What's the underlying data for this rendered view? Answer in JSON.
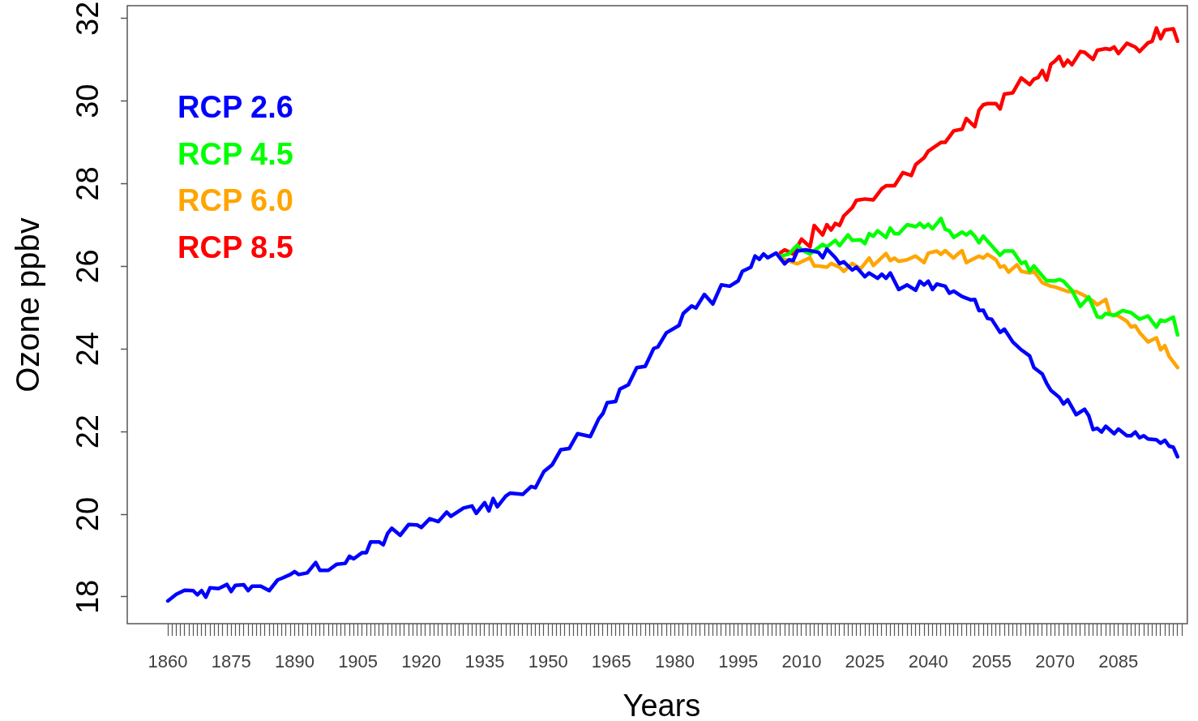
{
  "chart_data": {
    "type": "line",
    "xlabel": "Years",
    "ylabel": "Ozone ppbv",
    "legend": "top left",
    "xlim": [
      1850.4,
      2101.5
    ],
    "ylim": [
      17.35,
      32.31
    ],
    "yticks": [
      18,
      20,
      22,
      24,
      26,
      28,
      30,
      32
    ],
    "xticks": [
      1860,
      {
        "value": 1861,
        "label": null
      },
      {
        "value": 1862,
        "label": null
      },
      {
        "value": 1863,
        "label": null
      },
      {
        "value": 1864,
        "label": null
      },
      {
        "value": 1865,
        "label": null
      },
      {
        "value": 1866,
        "label": null
      },
      {
        "value": 1867,
        "label": null
      },
      {
        "value": 1868,
        "label": null
      },
      {
        "value": 1869,
        "label": null
      },
      {
        "value": 1870,
        "label": null
      },
      {
        "value": 1871,
        "label": null
      },
      {
        "value": 1872,
        "label": null
      },
      {
        "value": 1873,
        "label": null
      },
      {
        "value": 1874,
        "label": null
      },
      1875,
      {
        "value": 1876,
        "label": null
      },
      {
        "value": 1877,
        "label": null
      },
      {
        "value": 1878,
        "label": null
      },
      {
        "value": 1879,
        "label": null
      },
      {
        "value": 1880,
        "label": null
      },
      {
        "value": 1881,
        "label": null
      },
      {
        "value": 1882,
        "label": null
      },
      {
        "value": 1883,
        "label": null
      },
      {
        "value": 1884,
        "label": null
      },
      {
        "value": 1885,
        "label": null
      },
      {
        "value": 1886,
        "label": null
      },
      {
        "value": 1887,
        "label": null
      },
      {
        "value": 1888,
        "label": null
      },
      {
        "value": 1889,
        "label": null
      },
      1890,
      {
        "value": 1891,
        "label": null
      },
      {
        "value": 1892,
        "label": null
      },
      {
        "value": 1893,
        "label": null
      },
      {
        "value": 1894,
        "label": null
      },
      {
        "value": 1895,
        "label": null
      },
      {
        "value": 1896,
        "label": null
      },
      {
        "value": 1897,
        "label": null
      },
      {
        "value": 1898,
        "label": null
      },
      {
        "value": 1899,
        "label": null
      },
      {
        "value": 1900,
        "label": null
      },
      {
        "value": 1901,
        "label": null
      },
      {
        "value": 1902,
        "label": null
      },
      {
        "value": 1903,
        "label": null
      },
      {
        "value": 1904,
        "label": null
      },
      1905,
      {
        "value": 1906,
        "label": null
      },
      {
        "value": 1907,
        "label": null
      },
      {
        "value": 1908,
        "label": null
      },
      {
        "value": 1909,
        "label": null
      },
      {
        "value": 1910,
        "label": null
      },
      {
        "value": 1911,
        "label": null
      },
      {
        "value": 1912,
        "label": null
      },
      {
        "value": 1913,
        "label": null
      },
      {
        "value": 1914,
        "label": null
      },
      {
        "value": 1915,
        "label": null
      },
      {
        "value": 1916,
        "label": null
      },
      {
        "value": 1917,
        "label": null
      },
      {
        "value": 1918,
        "label": null
      },
      {
        "value": 1919,
        "label": null
      },
      1920,
      {
        "value": 1921,
        "label": null
      },
      {
        "value": 1922,
        "label": null
      },
      {
        "value": 1923,
        "label": null
      },
      {
        "value": 1924,
        "label": null
      },
      {
        "value": 1925,
        "label": null
      },
      {
        "value": 1926,
        "label": null
      },
      {
        "value": 1927,
        "label": null
      },
      {
        "value": 1928,
        "label": null
      },
      {
        "value": 1929,
        "label": null
      },
      {
        "value": 1930,
        "label": null
      },
      {
        "value": 1931,
        "label": null
      },
      {
        "value": 1932,
        "label": null
      },
      {
        "value": 1933,
        "label": null
      },
      {
        "value": 1934,
        "label": null
      },
      1935,
      {
        "value": 1936,
        "label": null
      },
      {
        "value": 1937,
        "label": null
      },
      {
        "value": 1938,
        "label": null
      },
      {
        "value": 1939,
        "label": null
      },
      {
        "value": 1940,
        "label": null
      },
      {
        "value": 1941,
        "label": null
      },
      {
        "value": 1942,
        "label": null
      },
      {
        "value": 1943,
        "label": null
      },
      {
        "value": 1944,
        "label": null
      },
      {
        "value": 1945,
        "label": null
      },
      {
        "value": 1946,
        "label": null
      },
      {
        "value": 1947,
        "label": null
      },
      {
        "value": 1948,
        "label": null
      },
      {
        "value": 1949,
        "label": null
      },
      1950,
      {
        "value": 1951,
        "label": null
      },
      {
        "value": 1952,
        "label": null
      },
      {
        "value": 1953,
        "label": null
      },
      {
        "value": 1954,
        "label": null
      },
      {
        "value": 1955,
        "label": null
      },
      {
        "value": 1956,
        "label": null
      },
      {
        "value": 1957,
        "label": null
      },
      {
        "value": 1958,
        "label": null
      },
      {
        "value": 1959,
        "label": null
      },
      {
        "value": 1960,
        "label": null
      },
      {
        "value": 1961,
        "label": null
      },
      {
        "value": 1962,
        "label": null
      },
      {
        "value": 1963,
        "label": null
      },
      {
        "value": 1964,
        "label": null
      },
      1965,
      {
        "value": 1966,
        "label": null
      },
      {
        "value": 1967,
        "label": null
      },
      {
        "value": 1968,
        "label": null
      },
      {
        "value": 1969,
        "label": null
      },
      {
        "value": 1970,
        "label": null
      },
      {
        "value": 1971,
        "label": null
      },
      {
        "value": 1972,
        "label": null
      },
      {
        "value": 1973,
        "label": null
      },
      {
        "value": 1974,
        "label": null
      },
      {
        "value": 1975,
        "label": null
      },
      {
        "value": 1976,
        "label": null
      },
      {
        "value": 1977,
        "label": null
      },
      {
        "value": 1978,
        "label": null
      },
      {
        "value": 1979,
        "label": null
      },
      1980,
      {
        "value": 1981,
        "label": null
      },
      {
        "value": 1982,
        "label": null
      },
      {
        "value": 1983,
        "label": null
      },
      {
        "value": 1984,
        "label": null
      },
      {
        "value": 1985,
        "label": null
      },
      {
        "value": 1986,
        "label": null
      },
      {
        "value": 1987,
        "label": null
      },
      {
        "value": 1988,
        "label": null
      },
      {
        "value": 1989,
        "label": null
      },
      {
        "value": 1990,
        "label": null
      },
      {
        "value": 1991,
        "label": null
      },
      {
        "value": 1992,
        "label": null
      },
      {
        "value": 1993,
        "label": null
      },
      {
        "value": 1994,
        "label": null
      },
      1995,
      {
        "value": 1996,
        "label": null
      },
      {
        "value": 1997,
        "label": null
      },
      {
        "value": 1998,
        "label": null
      },
      {
        "value": 1999,
        "label": null
      },
      {
        "value": 2000,
        "label": null
      },
      {
        "value": 2001,
        "label": null
      },
      {
        "value": 2002,
        "label": null
      },
      {
        "value": 2003,
        "label": null
      },
      {
        "value": 2004,
        "label": null
      },
      {
        "value": 2005,
        "label": null
      },
      {
        "value": 2006,
        "label": null
      },
      {
        "value": 2007,
        "label": null
      },
      {
        "value": 2008,
        "label": null
      },
      {
        "value": 2009,
        "label": null
      },
      2010,
      {
        "value": 2011,
        "label": null
      },
      {
        "value": 2012,
        "label": null
      },
      {
        "value": 2013,
        "label": null
      },
      {
        "value": 2014,
        "label": null
      },
      {
        "value": 2015,
        "label": null
      },
      {
        "value": 2016,
        "label": null
      },
      {
        "value": 2017,
        "label": null
      },
      {
        "value": 2018,
        "label": null
      },
      {
        "value": 2019,
        "label": null
      },
      {
        "value": 2020,
        "label": null
      },
      {
        "value": 2021,
        "label": null
      },
      {
        "value": 2022,
        "label": null
      },
      {
        "value": 2023,
        "label": null
      },
      {
        "value": 2024,
        "label": null
      },
      2025,
      {
        "value": 2026,
        "label": null
      },
      {
        "value": 2027,
        "label": null
      },
      {
        "value": 2028,
        "label": null
      },
      {
        "value": 2029,
        "label": null
      },
      {
        "value": 2030,
        "label": null
      },
      {
        "value": 2031,
        "label": null
      },
      {
        "value": 2032,
        "label": null
      },
      {
        "value": 2033,
        "label": null
      },
      {
        "value": 2034,
        "label": null
      },
      {
        "value": 2035,
        "label": null
      },
      {
        "value": 2036,
        "label": null
      },
      {
        "value": 2037,
        "label": null
      },
      {
        "value": 2038,
        "label": null
      },
      {
        "value": 2039,
        "label": null
      },
      2040,
      {
        "value": 2041,
        "label": null
      },
      {
        "value": 2042,
        "label": null
      },
      {
        "value": 2043,
        "label": null
      },
      {
        "value": 2044,
        "label": null
      },
      {
        "value": 2045,
        "label": null
      },
      {
        "value": 2046,
        "label": null
      },
      {
        "value": 2047,
        "label": null
      },
      {
        "value": 2048,
        "label": null
      },
      {
        "value": 2049,
        "label": null
      },
      {
        "value": 2050,
        "label": null
      },
      {
        "value": 2051,
        "label": null
      },
      {
        "value": 2052,
        "label": null
      },
      {
        "value": 2053,
        "label": null
      },
      {
        "value": 2054,
        "label": null
      },
      2055,
      {
        "value": 2056,
        "label": null
      },
      {
        "value": 2057,
        "label": null
      },
      {
        "value": 2058,
        "label": null
      },
      {
        "value": 2059,
        "label": null
      },
      {
        "value": 2060,
        "label": null
      },
      {
        "value": 2061,
        "label": null
      },
      {
        "value": 2062,
        "label": null
      },
      {
        "value": 2063,
        "label": null
      },
      {
        "value": 2064,
        "label": null
      },
      {
        "value": 2065,
        "label": null
      },
      {
        "value": 2066,
        "label": null
      },
      {
        "value": 2067,
        "label": null
      },
      {
        "value": 2068,
        "label": null
      },
      {
        "value": 2069,
        "label": null
      },
      2070,
      {
        "value": 2071,
        "label": null
      },
      {
        "value": 2072,
        "label": null
      },
      {
        "value": 2073,
        "label": null
      },
      {
        "value": 2074,
        "label": null
      },
      {
        "value": 2075,
        "label": null
      },
      {
        "value": 2076,
        "label": null
      },
      {
        "value": 2077,
        "label": null
      },
      {
        "value": 2078,
        "label": null
      },
      {
        "value": 2079,
        "label": null
      },
      {
        "value": 2080,
        "label": null
      },
      {
        "value": 2081,
        "label": null
      },
      {
        "value": 2082,
        "label": null
      },
      {
        "value": 2083,
        "label": null
      },
      {
        "value": 2084,
        "label": null
      },
      2085,
      {
        "value": 2086,
        "label": null
      },
      {
        "value": 2087,
        "label": null
      },
      {
        "value": 2088,
        "label": null
      },
      {
        "value": 2089,
        "label": null
      },
      {
        "value": 2090,
        "label": null
      },
      {
        "value": 2091,
        "label": null
      },
      {
        "value": 2092,
        "label": null
      },
      {
        "value": 2093,
        "label": null
      },
      {
        "value": 2094,
        "label": null
      },
      {
        "value": 2095,
        "label": null
      },
      {
        "value": 2096,
        "label": null
      },
      {
        "value": 2097,
        "label": null
      },
      {
        "value": 2098,
        "label": null
      },
      {
        "value": 2099,
        "label": null
      },
      {
        "value": 2100,
        "label": null
      }
    ],
    "series": [
      {
        "name": "RCP 2.6",
        "color": "#0000ff",
        "x": [
          1860,
          1862,
          1864,
          1866,
          1867,
          1868,
          1869,
          1870,
          1872,
          1874,
          1875,
          1876,
          1878,
          1879,
          1880,
          1882,
          1884,
          1886,
          1887,
          1889,
          1890,
          1891,
          1893,
          1895,
          1896,
          1898,
          1900,
          1902,
          1903,
          1904,
          1906,
          1907,
          1908,
          1910,
          1911,
          1912,
          1913,
          1915,
          1917,
          1919,
          1920,
          1922,
          1924,
          1926,
          1927,
          1930,
          1932,
          1933,
          1935,
          1936,
          1937,
          1938,
          1940,
          1941,
          1944,
          1946,
          1947,
          1949,
          1951,
          1953,
          1955,
          1957,
          1960,
          1962,
          1963,
          1964,
          1966,
          1967,
          1969,
          1971,
          1973,
          1975,
          1976,
          1978,
          1981,
          1982,
          1984,
          1985,
          1987,
          1989,
          1991,
          1993,
          1995,
          1996,
          1998,
          1999,
          2000,
          2001,
          2002,
          2004,
          2006,
          2007,
          2008,
          2009,
          2011,
          2014,
          2015,
          2016,
          2018,
          2019,
          2020,
          2022,
          2023,
          2025,
          2026,
          2028,
          2029,
          2030,
          2031,
          2033,
          2035,
          2037,
          2038,
          2039,
          2040,
          2041,
          2042,
          2044,
          2045,
          2046,
          2048,
          2050,
          2051,
          2052,
          2053,
          2054,
          2055,
          2057,
          2058,
          2060,
          2062,
          2064,
          2065,
          2067,
          2068,
          2069,
          2071,
          2072,
          2073,
          2075,
          2077,
          2078,
          2079,
          2080,
          2081,
          2082,
          2084,
          2085,
          2087,
          2088,
          2089,
          2090,
          2091,
          2092,
          2094,
          2095,
          2096,
          2097,
          2098,
          2099
        ],
        "values": [
          17.9,
          18.06,
          18.16,
          18.15,
          18.05,
          18.15,
          17.99,
          18.22,
          18.2,
          18.3,
          18.13,
          18.28,
          18.29,
          18.15,
          18.26,
          18.26,
          18.15,
          18.41,
          18.45,
          18.54,
          18.61,
          18.54,
          18.58,
          18.83,
          18.64,
          18.64,
          18.79,
          18.81,
          18.98,
          18.92,
          19.07,
          19.07,
          19.33,
          19.33,
          19.26,
          19.53,
          19.66,
          19.49,
          19.75,
          19.74,
          19.68,
          19.89,
          19.82,
          20.05,
          19.95,
          20.15,
          20.2,
          20.02,
          20.28,
          20.08,
          20.38,
          20.18,
          20.44,
          20.51,
          20.48,
          20.67,
          20.64,
          21.03,
          21.2,
          21.56,
          21.59,
          21.95,
          21.88,
          22.31,
          22.44,
          22.7,
          22.73,
          23.03,
          23.13,
          23.55,
          23.58,
          24.01,
          24.05,
          24.39,
          24.57,
          24.86,
          25.04,
          24.99,
          25.32,
          25.09,
          25.55,
          25.52,
          25.65,
          25.88,
          25.98,
          26.25,
          26.17,
          26.3,
          26.21,
          26.32,
          26.06,
          26.16,
          26.14,
          26.37,
          26.4,
          26.34,
          26.21,
          26.42,
          26.21,
          26.07,
          26.11,
          25.91,
          25.98,
          25.75,
          25.84,
          25.71,
          25.81,
          25.71,
          25.84,
          25.44,
          25.55,
          25.42,
          25.64,
          25.55,
          25.64,
          25.44,
          25.57,
          25.52,
          25.35,
          25.4,
          25.27,
          25.19,
          25.2,
          24.93,
          24.94,
          24.74,
          24.72,
          24.4,
          24.48,
          24.17,
          23.98,
          23.83,
          23.55,
          23.39,
          23.17,
          23.0,
          22.83,
          22.67,
          22.77,
          22.41,
          22.54,
          22.38,
          22.05,
          22.08,
          21.99,
          22.13,
          21.95,
          22.06,
          21.9,
          21.9,
          21.99,
          21.85,
          21.9,
          21.82,
          21.8,
          21.72,
          21.79,
          21.65,
          21.62,
          21.39
        ]
      },
      {
        "name": "RCP 4.5",
        "color": "#00ff00",
        "x": [
          2005,
          2007,
          2009,
          2010,
          2012,
          2015,
          2016,
          2018,
          2019,
          2021,
          2022,
          2024,
          2025,
          2026,
          2027,
          2028,
          2030,
          2031,
          2032,
          2033,
          2035,
          2037,
          2038,
          2039,
          2040,
          2041,
          2043,
          2044,
          2045,
          2046,
          2048,
          2049,
          2050,
          2051,
          2052,
          2053,
          2055,
          2057,
          2058,
          2060,
          2062,
          2063,
          2064,
          2065,
          2068,
          2070,
          2071,
          2072,
          2074,
          2075,
          2076,
          2078,
          2080,
          2081,
          2082,
          2084,
          2086,
          2088,
          2090,
          2092,
          2094,
          2095,
          2096,
          2098,
          2099
        ],
        "values": [
          26.24,
          26.3,
          26.51,
          26.4,
          26.3,
          26.53,
          26.47,
          26.63,
          26.5,
          26.76,
          26.63,
          26.64,
          26.55,
          26.79,
          26.73,
          26.86,
          26.7,
          26.93,
          26.79,
          26.79,
          27.01,
          26.96,
          27.04,
          26.94,
          27.02,
          26.91,
          27.16,
          26.9,
          26.86,
          26.7,
          26.83,
          26.76,
          26.84,
          26.73,
          26.57,
          26.73,
          26.5,
          26.27,
          26.37,
          26.37,
          26.07,
          26.11,
          25.88,
          26.01,
          25.65,
          25.65,
          25.68,
          25.64,
          25.42,
          25.22,
          25.03,
          25.26,
          24.78,
          24.76,
          24.86,
          24.81,
          24.93,
          24.88,
          24.72,
          24.8,
          24.53,
          24.7,
          24.67,
          24.77,
          24.34
        ]
      },
      {
        "name": "RCP 6.0",
        "color": "#ffa500",
        "x": [
          2005,
          2009,
          2012,
          2013,
          2014,
          2016,
          2017,
          2019,
          2020,
          2022,
          2024,
          2026,
          2027,
          2030,
          2031,
          2032,
          2033,
          2035,
          2037,
          2039,
          2040,
          2042,
          2043,
          2044,
          2046,
          2047,
          2048,
          2049,
          2052,
          2053,
          2054,
          2056,
          2057,
          2058,
          2059,
          2061,
          2062,
          2064,
          2065,
          2067,
          2069,
          2070,
          2073,
          2075,
          2077,
          2079,
          2080,
          2082,
          2083,
          2085,
          2087,
          2088,
          2089,
          2090,
          2092,
          2094,
          2095,
          2096,
          2097,
          2099
        ],
        "values": [
          26.2,
          26.06,
          26.21,
          26.01,
          26.01,
          25.98,
          26.07,
          25.98,
          25.88,
          26.07,
          25.94,
          26.2,
          26.02,
          26.31,
          26.14,
          26.2,
          26.12,
          26.16,
          26.25,
          26.09,
          26.32,
          26.37,
          26.29,
          26.38,
          26.2,
          26.3,
          26.38,
          26.09,
          26.25,
          26.2,
          26.29,
          26.16,
          25.98,
          26.01,
          25.86,
          26.04,
          25.88,
          25.84,
          25.88,
          25.6,
          25.52,
          25.5,
          25.39,
          25.39,
          25.29,
          25.16,
          25.07,
          25.2,
          24.85,
          24.8,
          24.67,
          24.53,
          24.56,
          24.4,
          24.17,
          24.27,
          23.98,
          24.08,
          23.82,
          23.55
        ]
      },
      {
        "name": "RCP 8.5",
        "color": "#ff0000",
        "x": [
          2005,
          2006,
          2008,
          2010,
          2012,
          2013,
          2015,
          2016,
          2017,
          2018,
          2019,
          2020,
          2022,
          2023,
          2025,
          2027,
          2029,
          2030,
          2032,
          2034,
          2036,
          2037,
          2039,
          2040,
          2043,
          2044,
          2046,
          2048,
          2049,
          2051,
          2052,
          2053,
          2054,
          2056,
          2057,
          2058,
          2060,
          2062,
          2064,
          2065,
          2066,
          2067,
          2068,
          2069,
          2070,
          2071,
          2072,
          2073,
          2074,
          2076,
          2077,
          2079,
          2080,
          2082,
          2083,
          2084,
          2085,
          2087,
          2089,
          2090,
          2092,
          2093,
          2094,
          2095,
          2096,
          2098,
          2099
        ],
        "values": [
          26.33,
          26.4,
          26.3,
          26.66,
          26.47,
          26.99,
          26.76,
          27.01,
          26.88,
          27.04,
          26.99,
          27.22,
          27.42,
          27.6,
          27.63,
          27.61,
          27.88,
          27.95,
          27.95,
          28.27,
          28.2,
          28.46,
          28.63,
          28.79,
          29.0,
          29.0,
          29.28,
          29.32,
          29.58,
          29.38,
          29.78,
          29.91,
          29.94,
          29.94,
          29.81,
          30.17,
          30.2,
          30.56,
          30.4,
          30.53,
          30.57,
          30.74,
          30.51,
          30.89,
          30.97,
          31.08,
          30.85,
          30.99,
          30.88,
          31.2,
          31.18,
          31.01,
          31.23,
          31.27,
          31.25,
          31.31,
          31.15,
          31.4,
          31.31,
          31.2,
          31.41,
          31.45,
          31.77,
          31.51,
          31.72,
          31.75,
          31.45
        ]
      }
    ]
  }
}
